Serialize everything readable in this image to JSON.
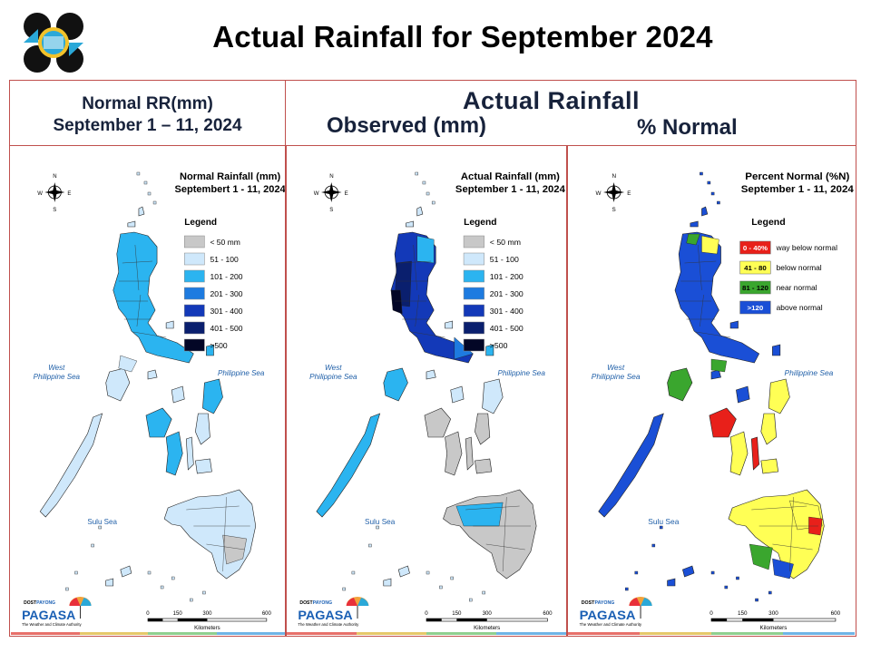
{
  "slide": {
    "title": "Actual Rainfall for September 2024"
  },
  "header": {
    "left_line1": "Normal RR(mm)",
    "left_line2": "September 1 – 11, 2024",
    "center_title": "Actual Rainfall",
    "observed_label": "Observed (mm)",
    "percent_label": "% Normal"
  },
  "panels": [
    {
      "id": "normal",
      "map_title_line1": "Normal Rainfall (mm)",
      "map_title_line2": "Septembert 1 - 11, 2024",
      "legend_title": "Legend",
      "legend": [
        {
          "label": "< 50 mm",
          "color": "#c8c8c8"
        },
        {
          "label": "51 - 100",
          "color": "#cfe8fb"
        },
        {
          "label": "101 - 200",
          "color": "#2bb4f0"
        },
        {
          "label": "201 - 300",
          "color": "#1e7be0"
        },
        {
          "label": "301 - 400",
          "color": "#1339b8"
        },
        {
          "label": "401 - 500",
          "color": "#0a1f6e"
        },
        {
          "label": ">500",
          "color": "#030626"
        }
      ]
    },
    {
      "id": "observed",
      "map_title_line1": "Actual Rainfall (mm)",
      "map_title_line2": "September 1 - 11, 2024",
      "legend_title": "Legend",
      "legend": [
        {
          "label": "< 50 mm",
          "color": "#c8c8c8"
        },
        {
          "label": "51 - 100",
          "color": "#cfe8fb"
        },
        {
          "label": "101 - 200",
          "color": "#2bb4f0"
        },
        {
          "label": "201 - 300",
          "color": "#1e7be0"
        },
        {
          "label": "301 - 400",
          "color": "#1339b8"
        },
        {
          "label": "401 - 500",
          "color": "#0a1f6e"
        },
        {
          "label": ">500",
          "color": "#030626"
        }
      ]
    },
    {
      "id": "percent",
      "map_title_line1": "Percent Normal (%N)",
      "map_title_line2": "September 1 - 11, 2024",
      "legend_title": "Legend",
      "legend": [
        {
          "box": "0 - 40%",
          "label": "way below normal",
          "color": "#e8201a",
          "text": "#ffffff"
        },
        {
          "box": "41 - 80",
          "label": "below normal",
          "color": "#ffff55",
          "text": "#000000"
        },
        {
          "box": "81 - 120",
          "label": "near normal",
          "color": "#3aa62e",
          "text": "#000000"
        },
        {
          "box": ">120",
          "label": "above normal",
          "color": "#1a4fd6",
          "text": "#ffffff"
        }
      ]
    }
  ],
  "map_labels": {
    "west_line1": "West",
    "west_line2": "Philippine Sea",
    "east": "Philippine Sea",
    "south": "Sulu Sea",
    "compass_n": "N",
    "compass_s": "S",
    "compass_e": "E",
    "compass_w": "W",
    "scale_ticks": [
      "0",
      "150",
      "300",
      "600"
    ],
    "scale_unit": "Kilometers"
  },
  "branding": {
    "dost": "DOST",
    "payong": "PAYONG",
    "pagasa": "PAGASA",
    "tagline": "The Weather and Climate Authority"
  },
  "colors": {
    "frame": "#c0504d",
    "header_text": "#17223b",
    "stripe": [
      "#e8706a",
      "#e6c86a",
      "#8fcf8f",
      "#6fb4e6"
    ]
  }
}
